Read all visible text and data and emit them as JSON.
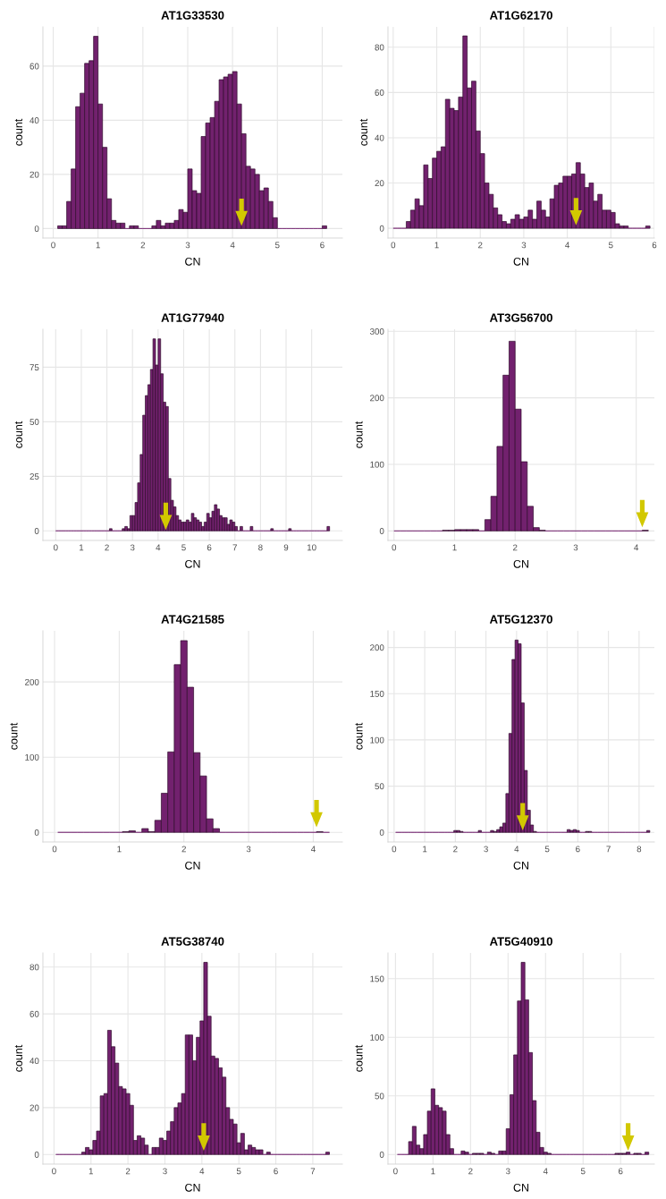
{
  "chart_data": [
    {
      "type": "histogram",
      "title": "AT1G33530",
      "xlabel": "CN",
      "ylabel": "count",
      "color": "#72216e",
      "grid": true,
      "bins": [
        0.1,
        0.2,
        0.3,
        0.4,
        0.5,
        0.6,
        0.7,
        0.8,
        0.9,
        1.0,
        1.1,
        1.2,
        1.3,
        1.4,
        1.5,
        1.6,
        1.7,
        1.8,
        1.9,
        2.0,
        2.1,
        2.2,
        2.3,
        2.4,
        2.5,
        2.6,
        2.7,
        2.8,
        2.9,
        3.0,
        3.1,
        3.2,
        3.3,
        3.4,
        3.5,
        3.6,
        3.7,
        3.8,
        3.9,
        4.0,
        4.1,
        4.2,
        4.3,
        4.4,
        4.5,
        4.6,
        4.7,
        4.8,
        4.9,
        5.0,
        5.1,
        5.2,
        5.3,
        5.4,
        5.5,
        5.6,
        5.7,
        5.8,
        5.9,
        6.0,
        6.1
      ],
      "values": [
        1,
        1,
        10,
        22,
        45,
        50,
        61,
        62,
        71,
        46,
        30,
        11,
        3,
        2,
        2,
        0,
        1,
        1,
        0,
        0,
        0,
        1,
        3,
        1,
        2,
        2,
        3,
        7,
        6,
        22,
        14,
        13,
        34,
        39,
        41,
        47,
        55,
        56,
        57,
        58,
        46,
        35,
        23,
        22,
        20,
        14,
        15,
        10,
        4,
        0,
        0,
        0,
        0,
        0,
        0,
        0,
        0,
        0,
        0,
        1
      ],
      "xlim": [
        -0.23,
        6.45
      ],
      "ylim": [
        -3.5,
        74.5
      ],
      "xticks": [
        0,
        1,
        2,
        3,
        4,
        5,
        6
      ],
      "yticks": [
        0,
        20,
        40,
        60
      ],
      "series": [
        {
          "type": "scatter",
          "x": [
            4.2
          ],
          "values": [
            6
          ],
          "color": "#d2c800"
        }
      ]
    },
    {
      "type": "histogram",
      "title": "AT1G62170",
      "xlabel": "CN",
      "ylabel": "count",
      "color": "#72216e",
      "grid": true,
      "bins": [
        0.0,
        0.1,
        0.2,
        0.3,
        0.4,
        0.5,
        0.6,
        0.7,
        0.8,
        0.9,
        1.0,
        1.1,
        1.2,
        1.3,
        1.4,
        1.5,
        1.6,
        1.7,
        1.8,
        1.9,
        2.0,
        2.1,
        2.2,
        2.3,
        2.4,
        2.5,
        2.6,
        2.7,
        2.8,
        2.9,
        3.0,
        3.1,
        3.2,
        3.3,
        3.4,
        3.5,
        3.6,
        3.7,
        3.8,
        3.9,
        4.0,
        4.1,
        4.2,
        4.3,
        4.4,
        4.5,
        4.6,
        4.7,
        4.8,
        4.9,
        5.0,
        5.1,
        5.2,
        5.3,
        5.4,
        5.5,
        5.6,
        5.7,
        5.8,
        5.9
      ],
      "values": [
        0,
        0,
        0,
        3,
        8,
        13,
        10,
        28,
        22,
        31,
        34,
        36,
        57,
        53,
        52,
        58,
        85,
        62,
        65,
        43,
        33,
        20,
        15,
        9,
        6,
        3,
        2,
        4,
        6,
        4,
        5,
        8,
        4,
        12,
        8,
        5,
        13,
        19,
        20,
        23,
        23,
        24,
        29,
        24,
        18,
        20,
        12,
        15,
        8,
        8,
        7,
        2,
        1,
        1,
        0,
        0,
        0,
        0,
        1
      ],
      "xlim": [
        -0.12,
        6.0
      ],
      "ylim": [
        -4.3,
        89
      ],
      "xticks": [
        0,
        1,
        2,
        3,
        4,
        5,
        6
      ],
      "yticks": [
        0,
        20,
        40,
        60,
        80
      ],
      "series": [
        {
          "type": "scatter",
          "x": [
            4.2
          ],
          "values": [
            7.4
          ],
          "color": "#d2c800"
        }
      ]
    },
    {
      "type": "histogram",
      "title": "AT1G77940",
      "xlabel": "CN",
      "ylabel": "count",
      "color": "#72216e",
      "grid": true,
      "bins": [
        0.0,
        0.1,
        0.2,
        0.3,
        0.4,
        0.5,
        0.6,
        0.7,
        0.8,
        0.9,
        1.0,
        1.1,
        1.2,
        1.3,
        1.4,
        1.5,
        1.6,
        1.7,
        1.8,
        1.9,
        2.0,
        2.1,
        2.2,
        2.3,
        2.4,
        2.5,
        2.6,
        2.7,
        2.8,
        2.9,
        3.0,
        3.1,
        3.2,
        3.3,
        3.4,
        3.5,
        3.6,
        3.7,
        3.8,
        3.9,
        4.0,
        4.1,
        4.2,
        4.3,
        4.4,
        4.5,
        4.6,
        4.7,
        4.8,
        4.9,
        5.0,
        5.1,
        5.2,
        5.3,
        5.4,
        5.5,
        5.6,
        5.7,
        5.8,
        5.9,
        6.0,
        6.1,
        6.2,
        6.3,
        6.4,
        6.5,
        6.6,
        6.7,
        6.8,
        6.9,
        7.0,
        7.1,
        7.2,
        7.3,
        7.4,
        7.5,
        7.6,
        7.7,
        7.8,
        7.9,
        8.0,
        8.1,
        8.2,
        8.3,
        8.4,
        8.5,
        8.6,
        8.7,
        8.8,
        8.9,
        9.0,
        9.1,
        9.2,
        9.3,
        9.4,
        9.5,
        9.6,
        9.7,
        9.8,
        9.9,
        10.0,
        10.1,
        10.2,
        10.3,
        10.4,
        10.5,
        10.6,
        10.7
      ],
      "values": [
        0,
        0,
        0,
        0,
        0,
        0,
        0,
        0,
        0,
        0,
        0,
        0,
        0,
        0,
        0,
        0,
        0,
        0,
        0,
        0,
        0,
        1,
        0,
        0,
        0,
        0,
        1,
        2,
        1,
        7,
        7,
        13,
        22,
        35,
        53,
        62,
        67,
        74,
        88,
        76,
        88,
        72,
        59,
        57,
        24,
        14,
        11,
        7,
        5,
        4,
        4,
        5,
        4,
        8,
        6,
        5,
        4,
        2,
        4,
        8,
        6,
        9,
        12,
        10,
        7,
        6,
        6,
        3,
        5,
        4,
        2,
        0,
        2,
        0,
        0,
        0,
        2,
        0,
        0,
        0,
        0,
        0,
        0,
        0,
        1,
        0,
        0,
        0,
        0,
        0,
        0,
        1,
        0,
        0,
        0,
        0,
        0,
        0,
        0,
        0,
        0,
        0,
        0,
        0,
        0,
        0,
        2
      ],
      "xlim": [
        -0.5,
        11.2
      ],
      "ylim": [
        -4.4,
        92.4
      ],
      "xticks": [
        0,
        1,
        2,
        3,
        4,
        5,
        6,
        7,
        8,
        9,
        10
      ],
      "yticks": [
        0,
        25,
        50,
        75
      ],
      "series": [
        {
          "type": "scatter",
          "x": [
            4.3
          ],
          "values": [
            6.7
          ],
          "color": "#d2c800"
        }
      ]
    },
    {
      "type": "histogram",
      "title": "AT3G56700",
      "xlabel": "CN",
      "ylabel": "count",
      "color": "#72216e",
      "grid": true,
      "bins": [
        0.0,
        0.1,
        0.2,
        0.3,
        0.4,
        0.5,
        0.6,
        0.7,
        0.8,
        0.9,
        1.0,
        1.1,
        1.2,
        1.3,
        1.4,
        1.5,
        1.6,
        1.7,
        1.8,
        1.9,
        2.0,
        2.1,
        2.2,
        2.3,
        2.4,
        2.5,
        2.6,
        2.7,
        2.8,
        2.9,
        3.0,
        3.1,
        3.2,
        3.3,
        3.4,
        3.5,
        3.6,
        3.7,
        3.8,
        3.9,
        4.0,
        4.1,
        4.2
      ],
      "values": [
        0,
        0,
        0,
        0,
        0,
        0,
        0,
        0,
        1,
        1,
        2,
        2,
        2,
        2,
        0,
        17,
        52,
        127,
        234,
        285,
        183,
        104,
        37,
        5,
        1,
        0,
        0,
        0,
        0,
        0,
        0,
        0,
        0,
        0,
        0,
        0,
        0,
        0,
        0,
        0,
        0,
        1
      ],
      "xlim": [
        -0.1,
        4.3
      ],
      "ylim": [
        -14.3,
        303
      ],
      "xticks": [
        0,
        1,
        2,
        3,
        4
      ],
      "yticks": [
        0,
        100,
        200,
        300
      ],
      "series": [
        {
          "type": "scatter",
          "x": [
            4.1
          ],
          "values": [
            26
          ],
          "color": "#d2c800"
        }
      ]
    },
    {
      "type": "histogram",
      "title": "AT4G21585",
      "xlabel": "CN",
      "ylabel": "count",
      "color": "#72216e",
      "grid": true,
      "bins": [
        0.05,
        0.15,
        0.25,
        0.35,
        0.45,
        0.55,
        0.65,
        0.75,
        0.85,
        0.95,
        1.05,
        1.15,
        1.25,
        1.35,
        1.45,
        1.55,
        1.65,
        1.75,
        1.85,
        1.95,
        2.05,
        2.15,
        2.25,
        2.35,
        2.45,
        2.55,
        2.65,
        2.75,
        2.85,
        2.95,
        3.05,
        3.15,
        3.25,
        3.35,
        3.45,
        3.55,
        3.65,
        3.75,
        3.85,
        3.95,
        4.05,
        4.15,
        4.25
      ],
      "values": [
        0,
        0,
        0,
        0,
        0,
        0,
        0,
        0,
        0,
        0,
        1,
        2,
        0,
        5,
        1,
        16,
        52,
        107,
        223,
        255,
        193,
        106,
        75,
        18,
        5,
        0,
        0,
        0,
        0,
        0,
        0,
        0,
        0,
        0,
        0,
        0,
        0,
        0,
        0,
        0,
        1,
        0
      ],
      "xlim": [
        -0.18,
        4.45
      ],
      "ylim": [
        -12.8,
        268
      ],
      "xticks": [
        0,
        1,
        2,
        3,
        4
      ],
      "yticks": [
        0,
        100,
        200
      ],
      "series": [
        {
          "type": "scatter",
          "x": [
            4.05
          ],
          "values": [
            25
          ],
          "color": "#d2c800"
        }
      ]
    },
    {
      "type": "histogram",
      "title": "AT5G12370",
      "xlabel": "CN",
      "ylabel": "count",
      "color": "#72216e",
      "grid": true,
      "bins": [
        0.05,
        0.15,
        0.25,
        0.35,
        0.45,
        0.55,
        0.65,
        0.75,
        0.85,
        0.95,
        1.05,
        1.15,
        1.25,
        1.35,
        1.45,
        1.55,
        1.65,
        1.75,
        1.85,
        1.95,
        2.05,
        2.15,
        2.25,
        2.35,
        2.45,
        2.55,
        2.65,
        2.75,
        2.85,
        2.95,
        3.05,
        3.15,
        3.25,
        3.35,
        3.45,
        3.55,
        3.65,
        3.75,
        3.85,
        3.95,
        4.05,
        4.15,
        4.25,
        4.35,
        4.45,
        4.55,
        4.65,
        4.75,
        4.85,
        4.95,
        5.05,
        5.15,
        5.25,
        5.35,
        5.45,
        5.55,
        5.65,
        5.75,
        5.85,
        5.95,
        6.05,
        6.15,
        6.25,
        6.35,
        6.45,
        6.55,
        6.65,
        6.75,
        6.85,
        6.95,
        7.05,
        7.15,
        7.25,
        7.35,
        7.45,
        7.55,
        7.65,
        7.75,
        7.85,
        7.95,
        8.05,
        8.15,
        8.25,
        8.35
      ],
      "values": [
        0,
        0,
        0,
        0,
        0,
        0,
        0,
        0,
        0,
        0,
        0,
        0,
        0,
        0,
        0,
        0,
        0,
        0,
        0,
        2,
        2,
        1,
        0,
        0,
        0,
        0,
        0,
        2,
        0,
        0,
        0,
        2,
        1,
        3,
        6,
        10,
        42,
        107,
        187,
        208,
        204,
        140,
        67,
        24,
        8,
        1,
        0,
        0,
        0,
        0,
        0,
        0,
        0,
        0,
        0,
        0,
        3,
        2,
        3,
        2,
        0,
        0,
        1,
        1,
        0,
        0,
        0,
        0,
        0,
        0,
        0,
        0,
        0,
        0,
        0,
        0,
        0,
        0,
        0,
        0,
        0,
        0,
        2
      ],
      "xlim": [
        -0.2,
        8.5
      ],
      "ylim": [
        -10.4,
        218
      ],
      "xticks": [
        0,
        1,
        2,
        3,
        4,
        5,
        6,
        7,
        8
      ],
      "yticks": [
        0,
        50,
        100,
        150,
        200
      ],
      "series": [
        {
          "type": "scatter",
          "x": [
            4.2
          ],
          "values": [
            17
          ],
          "color": "#d2c800"
        }
      ]
    },
    {
      "type": "histogram",
      "title": "AT5G38740",
      "xlabel": "CN",
      "ylabel": "count",
      "color": "#72216e",
      "grid": true,
      "bins": [
        0.05,
        0.15,
        0.25,
        0.35,
        0.45,
        0.55,
        0.65,
        0.75,
        0.85,
        0.95,
        1.05,
        1.15,
        1.25,
        1.35,
        1.45,
        1.55,
        1.65,
        1.75,
        1.85,
        1.95,
        2.05,
        2.15,
        2.25,
        2.35,
        2.45,
        2.55,
        2.65,
        2.75,
        2.85,
        2.95,
        3.05,
        3.15,
        3.25,
        3.35,
        3.45,
        3.55,
        3.65,
        3.75,
        3.85,
        3.95,
        4.05,
        4.15,
        4.25,
        4.35,
        4.45,
        4.55,
        4.65,
        4.75,
        4.85,
        4.95,
        5.05,
        5.15,
        5.25,
        5.35,
        5.45,
        5.55,
        5.65,
        5.75,
        5.85,
        5.95,
        6.05,
        6.15,
        6.25,
        6.35,
        6.45,
        6.55,
        6.65,
        6.75,
        6.85,
        6.95,
        7.05,
        7.15,
        7.25,
        7.35,
        7.45
      ],
      "values": [
        0,
        0,
        0,
        0,
        0,
        0,
        0,
        1,
        3,
        2,
        6,
        10,
        25,
        26,
        53,
        46,
        39,
        29,
        28,
        26,
        21,
        6,
        8,
        7,
        4,
        0,
        3,
        3,
        7,
        6,
        10,
        14,
        20,
        22,
        26,
        51,
        51,
        40,
        50,
        57,
        82,
        59,
        42,
        41,
        37,
        33,
        20,
        15,
        13,
        5,
        9,
        2,
        4,
        3,
        2,
        2,
        0,
        1,
        0,
        0,
        0,
        0,
        0,
        0,
        0,
        0,
        0,
        0,
        0,
        0,
        0,
        0,
        0,
        1
      ],
      "xlim": [
        -0.3,
        7.8
      ],
      "ylim": [
        -4.1,
        86
      ],
      "xticks": [
        0,
        1,
        2,
        3,
        4,
        5,
        6,
        7
      ],
      "yticks": [
        0,
        20,
        40,
        60,
        80
      ],
      "series": [
        {
          "type": "scatter",
          "x": [
            4.05
          ],
          "values": [
            7.5
          ],
          "color": "#d2c800"
        }
      ]
    },
    {
      "type": "histogram",
      "title": "AT5G40910",
      "xlabel": "CN",
      "ylabel": "count",
      "color": "#72216e",
      "grid": true,
      "bins": [
        0.05,
        0.15,
        0.25,
        0.35,
        0.45,
        0.55,
        0.65,
        0.75,
        0.85,
        0.95,
        1.05,
        1.15,
        1.25,
        1.35,
        1.45,
        1.55,
        1.65,
        1.75,
        1.85,
        1.95,
        2.05,
        2.15,
        2.25,
        2.35,
        2.45,
        2.55,
        2.65,
        2.75,
        2.85,
        2.95,
        3.05,
        3.15,
        3.25,
        3.35,
        3.45,
        3.55,
        3.65,
        3.75,
        3.85,
        3.95,
        4.05,
        4.15,
        4.25,
        4.35,
        4.45,
        4.55,
        4.65,
        4.75,
        4.85,
        4.95,
        5.05,
        5.15,
        5.25,
        5.35,
        5.45,
        5.55,
        5.65,
        5.75,
        5.85,
        5.95,
        6.05,
        6.15,
        6.25,
        6.35,
        6.45,
        6.55,
        6.65,
        6.75
      ],
      "values": [
        0,
        0,
        0,
        11,
        24,
        8,
        5,
        17,
        37,
        56,
        42,
        40,
        37,
        17,
        5,
        0,
        0,
        3,
        2,
        0,
        1,
        1,
        1,
        0,
        2,
        1,
        0,
        3,
        3,
        22,
        51,
        85,
        131,
        164,
        132,
        87,
        46,
        19,
        6,
        2,
        1,
        0,
        0,
        0,
        0,
        0,
        0,
        0,
        0,
        0,
        0,
        0,
        0,
        0,
        0,
        0,
        0,
        0,
        1,
        1,
        1,
        2,
        0,
        1,
        1,
        0,
        2
      ],
      "xlim": [
        -0.2,
        6.9
      ],
      "ylim": [
        -8.2,
        172
      ],
      "xticks": [
        0,
        1,
        2,
        3,
        4,
        5,
        6
      ],
      "yticks": [
        0,
        50,
        100,
        150
      ],
      "series": [
        {
          "type": "scatter",
          "x": [
            6.2
          ],
          "values": [
            15
          ],
          "color": "#d2c800"
        }
      ]
    }
  ]
}
